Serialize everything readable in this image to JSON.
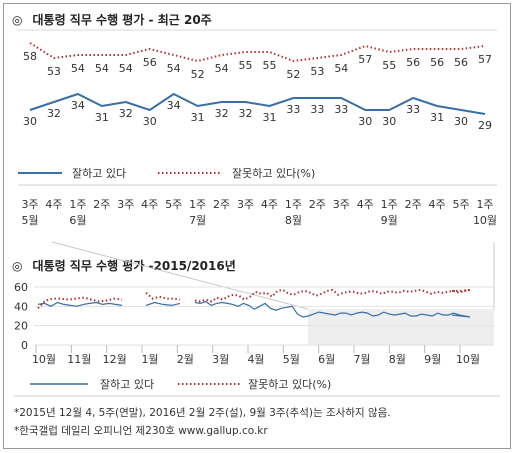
{
  "chart_data": [
    {
      "type": "line",
      "title": "대통령 직무 수행 평가 - 최근 20주",
      "title_mark": "◎",
      "x": [
        "3주 5월",
        "4주",
        "1주 6월",
        "2주",
        "3주",
        "4주",
        "5주",
        "1주 7월",
        "2주",
        "3주",
        "4주",
        "1주 8월",
        "2주",
        "3주",
        "4주",
        "1주 9월",
        "2주",
        "4주",
        "5주",
        "1주 10월"
      ],
      "x_ticks": [
        {
          "line1": "3주",
          "line2": "5월"
        },
        {
          "line1": "4주",
          "line2": ""
        },
        {
          "line1": "1주",
          "line2": "6월"
        },
        {
          "line1": "2주",
          "line2": ""
        },
        {
          "line1": "3주",
          "line2": ""
        },
        {
          "line1": "4주",
          "line2": ""
        },
        {
          "line1": "5주",
          "line2": ""
        },
        {
          "line1": "1주",
          "line2": "7월"
        },
        {
          "line1": "2주",
          "line2": ""
        },
        {
          "line1": "3주",
          "line2": ""
        },
        {
          "line1": "4주",
          "line2": ""
        },
        {
          "line1": "1주",
          "line2": "8월"
        },
        {
          "line1": "2주",
          "line2": ""
        },
        {
          "line1": "3주",
          "line2": ""
        },
        {
          "line1": "4주",
          "line2": ""
        },
        {
          "line1": "1주",
          "line2": "9월"
        },
        {
          "line1": "2주",
          "line2": ""
        },
        {
          "line1": "4주",
          "line2": ""
        },
        {
          "line1": "5주",
          "line2": ""
        },
        {
          "line1": "1주",
          "line2": "10월"
        }
      ],
      "series": [
        {
          "name": "잘하고 있다",
          "color": "#3a6ea5",
          "style": "solid",
          "values": [
            30,
            32,
            34,
            31,
            32,
            30,
            34,
            31,
            32,
            32,
            31,
            33,
            33,
            33,
            30,
            30,
            33,
            31,
            30,
            29
          ]
        },
        {
          "name": "잘못하고 있다(%)",
          "color": "#b03030",
          "style": "dotted",
          "values": [
            58,
            53,
            54,
            54,
            54,
            56,
            54,
            52,
            54,
            55,
            55,
            52,
            53,
            54,
            57,
            55,
            56,
            56,
            56,
            57
          ]
        }
      ],
      "ylim": [
        0,
        100
      ]
    },
    {
      "type": "line",
      "title": "대통령 직무 수행 평가 -2015/2016년",
      "title_mark": "◎",
      "y_ticks": [
        "60",
        "40",
        "20",
        "0"
      ],
      "ylim": [
        0,
        60
      ],
      "months": [
        "10월",
        "11월",
        "12월",
        "1월",
        "2월",
        "3월",
        "4월",
        "5월",
        "6월",
        "7월",
        "8월",
        "9월",
        "10월"
      ],
      "series": [
        {
          "name": "잘하고 있다",
          "color": "#3a6ea5",
          "style": "solid",
          "segments": [
            [
              42,
              43,
              40,
              44,
              42,
              41,
              40,
              42,
              43,
              44,
              42,
              43,
              42,
              41
            ],
            [
              41,
              44,
              42,
              41,
              43
            ],
            [
              44,
              43,
              45,
              41,
              43,
              44,
              43,
              42,
              40,
              43,
              41,
              37,
              40,
              43,
              38,
              36,
              38,
              39,
              40,
              32,
              29,
              30,
              32,
              34,
              33,
              32,
              31,
              33,
              33,
              31,
              33,
              34,
              33,
              30,
              31,
              34,
              32,
              31,
              32,
              33,
              30,
              30,
              32,
              31,
              30,
              33,
              31,
              31,
              33,
              31,
              30,
              29
            ],
            [
              31,
              30,
              29
            ]
          ]
        },
        {
          "name": "잘못하고 있다(%)",
          "color": "#b03030",
          "style": "dotted",
          "segments": [
            [
              38,
              46,
              48,
              48,
              47,
              48,
              49,
              47,
              45,
              46,
              48,
              47
            ],
            [
              54,
              48,
              50,
              48,
              48,
              47
            ],
            [
              46,
              45,
              47,
              45,
              49,
              47,
              50,
              52,
              51,
              47,
              50,
              55,
              53,
              54,
              50,
              56,
              57,
              53,
              52,
              55,
              56,
              54,
              51,
              53,
              56,
              57,
              52,
              54,
              55,
              55,
              53,
              54,
              56,
              55,
              53,
              55,
              55,
              54,
              56,
              55,
              56,
              57,
              55,
              53,
              55,
              54,
              55,
              56,
              54,
              56,
              57
            ],
            [
              56,
              56,
              57
            ]
          ]
        }
      ]
    }
  ],
  "legend": {
    "approve": "잘하고 있다",
    "disapprove": "잘못하고 있다(%)"
  },
  "footnotes": [
    "*2015년 12월 4, 5주(연말), 2016년 2월 2주(설), 9월 3주(추석)는 조사하지 않음.",
    "*한국갤럽 데일리 오피니언 제230호 www.gallup.co.kr"
  ]
}
